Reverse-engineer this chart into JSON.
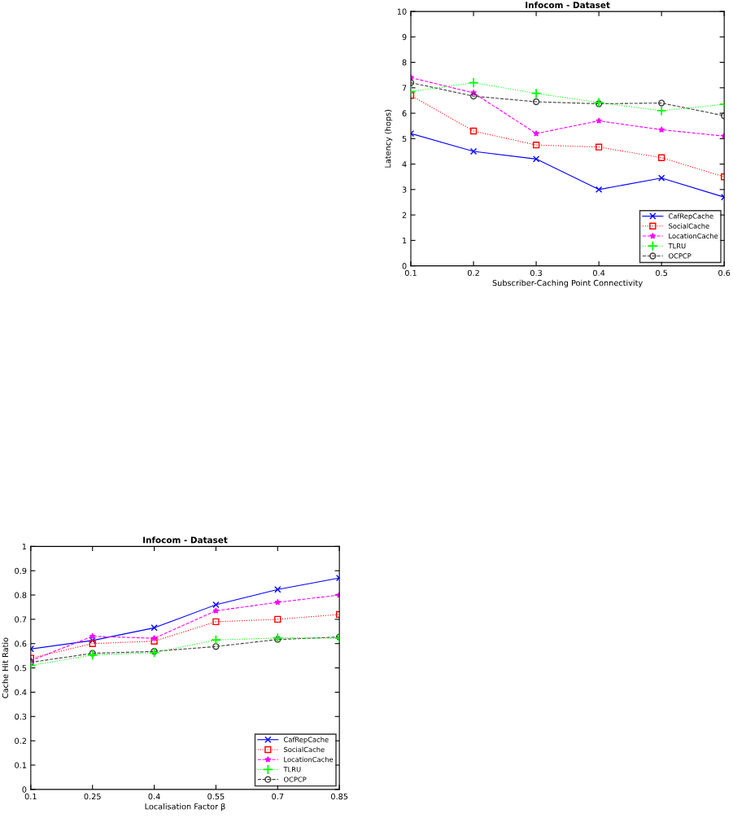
{
  "chart_data": [
    {
      "type": "line",
      "title": "Infocom - Dataset",
      "xlabel": "Subscriber-Caching Point Connectivity",
      "ylabel": "Latency (hops)",
      "x": [
        0.1,
        0.2,
        0.3,
        0.4,
        0.5,
        0.6
      ],
      "xlim": [
        0.1,
        0.6
      ],
      "xticks": [
        0.1,
        0.2,
        0.3,
        0.4,
        0.5,
        0.6
      ],
      "ylim": [
        0,
        10
      ],
      "yticks": [
        0,
        1,
        2,
        3,
        4,
        5,
        6,
        7,
        8,
        9,
        10
      ],
      "grid": false,
      "legend": "bottom right",
      "series": [
        {
          "name": "CafRepCache",
          "color": "#0000ff",
          "marker": "cross",
          "line_style": "solid",
          "values": [
            5.2,
            4.5,
            4.2,
            3.0,
            3.45,
            2.7
          ]
        },
        {
          "name": "SocialCache",
          "color": "#ff0000",
          "marker": "square",
          "line_style": "dotted",
          "values": [
            6.7,
            5.3,
            4.75,
            4.67,
            4.25,
            3.5
          ]
        },
        {
          "name": "LocationCache",
          "color": "#ff00ff",
          "marker": "star",
          "line_style": "dashed",
          "values": [
            7.4,
            6.8,
            5.2,
            5.7,
            5.35,
            5.1
          ]
        },
        {
          "name": "TLRU",
          "color": "#00ff00",
          "marker": "plus",
          "line_style": "dotted",
          "values": [
            6.85,
            7.2,
            6.78,
            6.42,
            6.1,
            6.35
          ]
        },
        {
          "name": "OCPCP",
          "color": "#404040",
          "marker": "circle",
          "line_style": "dashed",
          "values": [
            7.2,
            6.67,
            6.45,
            6.37,
            6.4,
            5.9
          ]
        }
      ]
    },
    {
      "type": "line",
      "title": "Infocom - Dataset",
      "xlabel": "Localisation Factor β",
      "ylabel": "Cache Hit Ratio",
      "x": [
        0.1,
        0.25,
        0.4,
        0.55,
        0.7,
        0.85
      ],
      "xlim": [
        0.1,
        0.85
      ],
      "xticks": [
        0.1,
        0.25,
        0.4,
        0.55,
        0.7,
        0.85
      ],
      "ylim": [
        0,
        1
      ],
      "yticks": [
        0,
        0.1,
        0.2,
        0.3,
        0.4,
        0.5,
        0.6,
        0.7,
        0.8,
        0.9,
        1
      ],
      "grid": false,
      "legend": "bottom right",
      "series": [
        {
          "name": "CafRepCache",
          "color": "#0000ff",
          "marker": "cross",
          "line_style": "solid",
          "values": [
            0.578,
            0.613,
            0.665,
            0.76,
            0.823,
            0.87
          ]
        },
        {
          "name": "SocialCache",
          "color": "#ff0000",
          "marker": "square",
          "line_style": "dotted",
          "values": [
            0.54,
            0.6,
            0.61,
            0.69,
            0.7,
            0.72
          ]
        },
        {
          "name": "LocationCache",
          "color": "#ff00ff",
          "marker": "star",
          "line_style": "dashed",
          "values": [
            0.53,
            0.63,
            0.622,
            0.735,
            0.77,
            0.8
          ]
        },
        {
          "name": "TLRU",
          "color": "#00ff00",
          "marker": "plus",
          "line_style": "dotted",
          "values": [
            0.51,
            0.553,
            0.563,
            0.615,
            0.623,
            0.623
          ]
        },
        {
          "name": "OCPCP",
          "color": "#404040",
          "marker": "circle",
          "line_style": "dashed",
          "values": [
            0.523,
            0.56,
            0.568,
            0.588,
            0.617,
            0.627
          ]
        }
      ]
    }
  ]
}
